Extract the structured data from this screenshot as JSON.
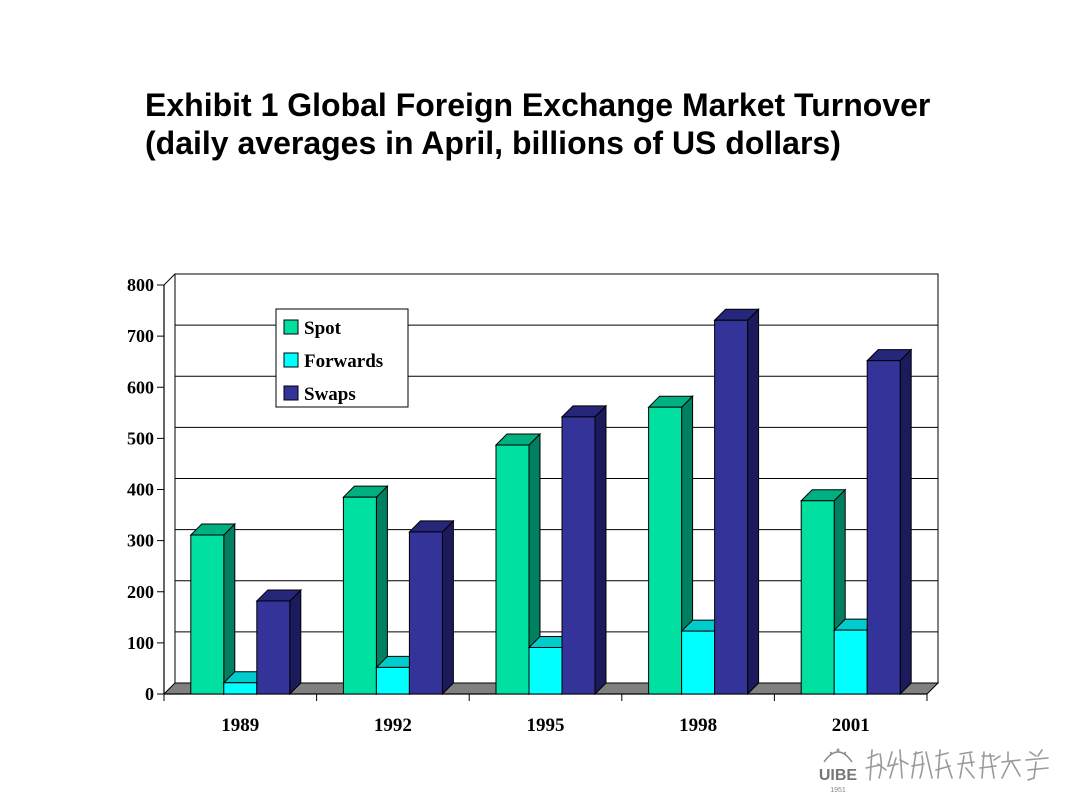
{
  "title": {
    "line1": "Exhibit 1  Global Foreign Exchange Market Turnover",
    "line2": "(daily averages in April, billions of US dollars)"
  },
  "chart_data": {
    "type": "bar",
    "categories": [
      "1989",
      "1992",
      "1995",
      "1998",
      "2001"
    ],
    "series": [
      {
        "name": "Spot",
        "values": [
          311,
          385,
          487,
          561,
          378
        ],
        "color": "#00E0A0",
        "side": "#008060",
        "top": "#00B080"
      },
      {
        "name": "Forwards",
        "values": [
          22,
          52,
          91,
          123,
          125
        ],
        "color": "#00FFFF",
        "side": "#009999",
        "top": "#00CCCC"
      },
      {
        "name": "Swaps",
        "values": [
          182,
          317,
          542,
          731,
          652
        ],
        "color": "#333399",
        "side": "#1a1a5c",
        "top": "#26267a"
      }
    ],
    "ylim": [
      0,
      800
    ],
    "yticks": [
      0,
      100,
      200,
      300,
      400,
      500,
      600,
      700,
      800
    ],
    "grid": true,
    "legend": "top-left",
    "three_d": true
  },
  "logo": {
    "abbrev": "UIBE",
    "year": "1951",
    "name": "对外经济贸易大学"
  }
}
